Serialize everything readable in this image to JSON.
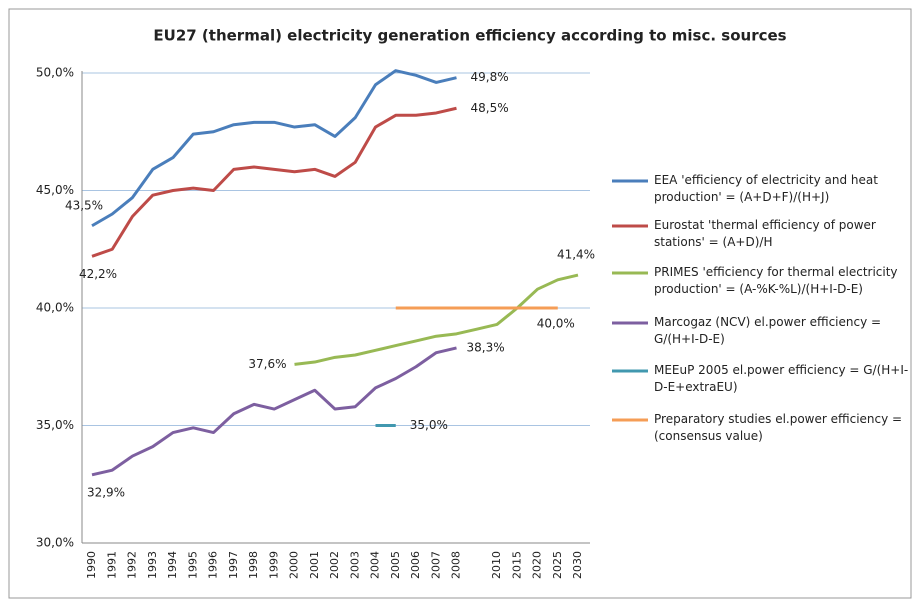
{
  "chart_data": {
    "type": "line",
    "title": "EU27 (thermal) electricity generation efficiency according to misc. sources",
    "categories": [
      "1990",
      "1991",
      "1992",
      "1993",
      "1994",
      "1995",
      "1996",
      "1997",
      "1998",
      "1999",
      "2000",
      "2001",
      "2002",
      "2003",
      "2004",
      "2005",
      "2006",
      "2007",
      "2008",
      null,
      "2010",
      "2015",
      "2020",
      "2025",
      "2030"
    ],
    "series": [
      {
        "name": "EEA  'efficiency of electricity and heat production' = (A+D+F)/(H+J)",
        "color": "#4a7ebb",
        "values": [
          43.5,
          44.0,
          44.7,
          45.9,
          46.4,
          47.4,
          47.5,
          47.8,
          47.9,
          47.9,
          47.7,
          47.8,
          47.3,
          48.1,
          49.5,
          50.1,
          49.9,
          49.6,
          49.8,
          null,
          null,
          null,
          null,
          null,
          null
        ],
        "value_labels": [
          "43,5%",
          null,
          null,
          null,
          null,
          null,
          null,
          null,
          null,
          null,
          null,
          null,
          null,
          null,
          null,
          null,
          null,
          null,
          "49,8%",
          null,
          null,
          null,
          null,
          null,
          null
        ]
      },
      {
        "name": "Eurostat  'thermal efficiency of power stations' = (A+D)/H",
        "color": "#be4b48",
        "values": [
          42.2,
          42.5,
          43.9,
          44.8,
          45.0,
          45.1,
          45.0,
          45.9,
          46.0,
          45.9,
          45.8,
          45.9,
          45.6,
          46.2,
          47.7,
          48.2,
          48.2,
          48.3,
          48.5,
          null,
          null,
          null,
          null,
          null,
          null
        ],
        "value_labels": [
          "42,2%",
          null,
          null,
          null,
          null,
          null,
          null,
          null,
          null,
          null,
          null,
          null,
          null,
          null,
          null,
          null,
          null,
          null,
          "48,5%",
          null,
          null,
          null,
          null,
          null,
          null
        ]
      },
      {
        "name": "PRIMES 'efficiency for thermal electricity production' = (A-%K-%L)/(H+I-D-E)",
        "color": "#98b954",
        "values": [
          null,
          null,
          null,
          null,
          null,
          null,
          null,
          null,
          null,
          null,
          37.6,
          37.7,
          37.9,
          38.0,
          38.2,
          38.4,
          38.6,
          38.8,
          38.9,
          39.1,
          39.3,
          40.0,
          40.8,
          41.2,
          41.4
        ],
        "value_labels": [
          null,
          null,
          null,
          null,
          null,
          null,
          null,
          null,
          null,
          null,
          "37,6%",
          null,
          null,
          null,
          null,
          null,
          null,
          null,
          null,
          null,
          null,
          null,
          null,
          null,
          "41,4%"
        ]
      },
      {
        "name": "Marcogaz (NCV)  el.power efficiency = G/(H+I-D-E)",
        "color": "#7d5fa0",
        "values": [
          32.9,
          33.1,
          33.7,
          34.1,
          34.7,
          34.9,
          34.7,
          35.5,
          35.9,
          35.7,
          36.1,
          36.5,
          35.7,
          35.8,
          36.6,
          37.0,
          37.5,
          38.1,
          38.3,
          null,
          null,
          null,
          null,
          null,
          null
        ],
        "value_labels": [
          "32,9%",
          null,
          null,
          null,
          null,
          null,
          null,
          null,
          null,
          null,
          null,
          null,
          null,
          null,
          null,
          null,
          null,
          null,
          "38,3%",
          null,
          null,
          null,
          null,
          null,
          null
        ]
      },
      {
        "name": "MEEuP 2005   el.power efficiency = G/(H+I-D-E+extraEU)",
        "color": "#4198af",
        "values": [
          null,
          null,
          null,
          null,
          null,
          null,
          null,
          null,
          null,
          null,
          null,
          null,
          null,
          null,
          35.0,
          35.0,
          null,
          null,
          null,
          null,
          null,
          null,
          null,
          null,
          null
        ],
        "value_labels": [
          null,
          null,
          null,
          null,
          null,
          null,
          null,
          null,
          null,
          null,
          null,
          null,
          null,
          null,
          null,
          "35,0%",
          null,
          null,
          null,
          null,
          null,
          null,
          null,
          null,
          null
        ]
      },
      {
        "name": "Preparatory studies  el.power efficiency =(consensus value)",
        "color": "#f59d56",
        "values": [
          null,
          null,
          null,
          null,
          null,
          null,
          null,
          null,
          null,
          null,
          null,
          null,
          null,
          null,
          null,
          40.0,
          40.0,
          40.0,
          40.0,
          40.0,
          40.0,
          40.0,
          40.0,
          40.0,
          null
        ],
        "value_labels": [
          null,
          null,
          null,
          null,
          null,
          null,
          null,
          null,
          null,
          null,
          null,
          null,
          null,
          null,
          null,
          null,
          null,
          null,
          null,
          null,
          null,
          null,
          null,
          "40,0%",
          null
        ]
      }
    ],
    "ylim": [
      30,
      50
    ],
    "yticks": [
      {
        "value": 30,
        "label": "30,0%"
      },
      {
        "value": 35,
        "label": "35,0%"
      },
      {
        "value": 40,
        "label": "40,0%"
      },
      {
        "value": 45,
        "label": "45,0%"
      },
      {
        "value": 50,
        "label": "50,0%"
      }
    ],
    "grid": true,
    "legend": "right"
  }
}
